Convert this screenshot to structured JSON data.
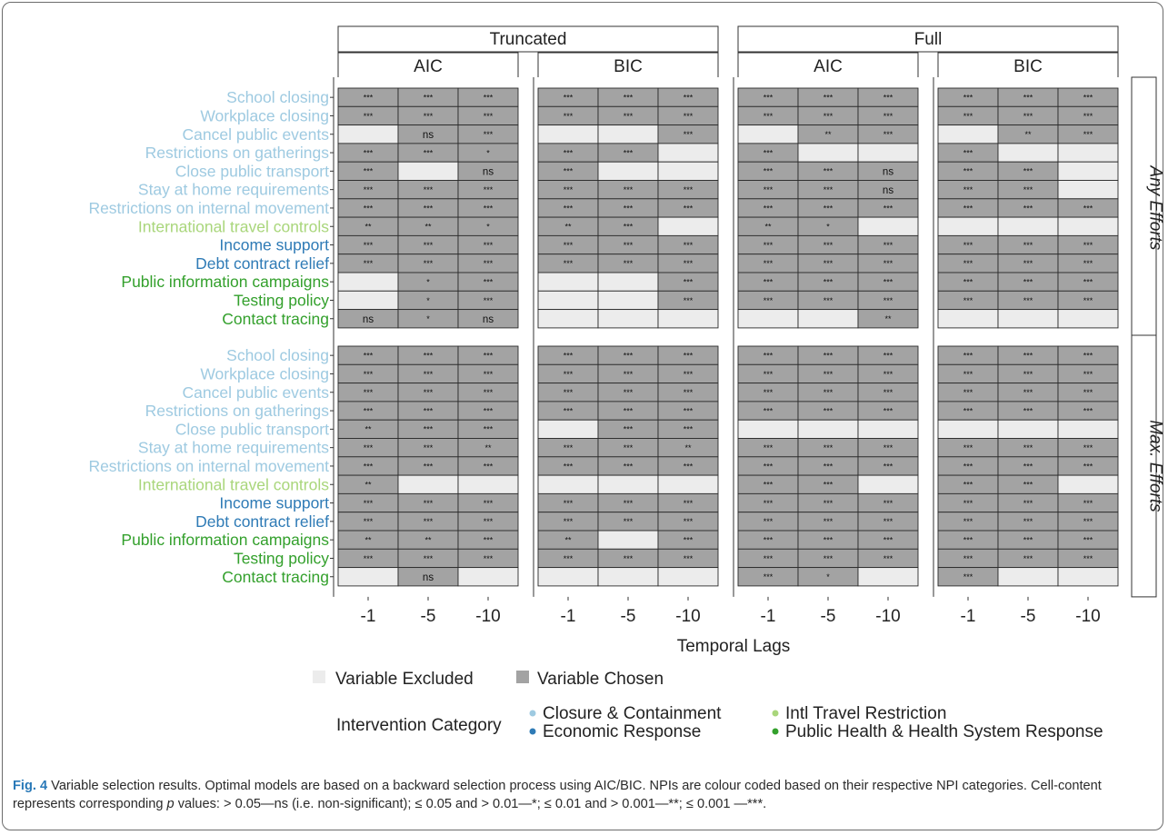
{
  "chart_data": {
    "type": "heatmap",
    "xlabel": "Temporal Lags",
    "x_ticks": [
      "-1",
      "-5",
      "-10"
    ],
    "column_groups": [
      {
        "label": "Truncated",
        "criteria": [
          "AIC",
          "BIC"
        ]
      },
      {
        "label": "Full",
        "criteria": [
          "AIC",
          "BIC"
        ]
      }
    ],
    "row_labels": [
      "School closing",
      "Workplace closing",
      "Cancel public events",
      "Restrictions on gatherings",
      "Close public transport",
      "Stay at home requirements",
      "Restrictions on internal movement",
      "International travel controls",
      "Income support",
      "Debt contract relief",
      "Public information campaigns",
      "Testing policy",
      "Contact tracing"
    ],
    "row_categories": [
      "Closure & Containment",
      "Closure & Containment",
      "Closure & Containment",
      "Closure & Containment",
      "Closure & Containment",
      "Closure & Containment",
      "Closure & Containment",
      "Intl Travel Restriction",
      "Economic Response",
      "Economic Response",
      "Public Health & Health System Response",
      "Public Health & Health System Response",
      "Public Health & Health System Response"
    ],
    "cell_encoding": "null = Variable Excluded; text = p-value significance of chosen variable",
    "panels": [
      {
        "label": "Any Efforts",
        "cells": [
          [
            [
              [
                "***",
                "***",
                "***"
              ],
              [
                "***",
                "***",
                "***"
              ],
              [
                null,
                "ns",
                "***"
              ],
              [
                "***",
                "***",
                "*"
              ],
              [
                "***",
                null,
                "ns"
              ],
              [
                "***",
                "***",
                "***"
              ],
              [
                "***",
                "***",
                "***"
              ],
              [
                "**",
                "**",
                "*"
              ],
              [
                "***",
                "***",
                "***"
              ],
              [
                "***",
                "***",
                "***"
              ],
              [
                null,
                "*",
                "***"
              ],
              [
                null,
                "*",
                "***"
              ],
              [
                "ns",
                "*",
                "ns"
              ]
            ],
            [
              [
                "***",
                "***",
                "***"
              ],
              [
                "***",
                "***",
                "***"
              ],
              [
                null,
                null,
                "***"
              ],
              [
                "***",
                "***",
                null
              ],
              [
                "***",
                null,
                null
              ],
              [
                "***",
                "***",
                "***"
              ],
              [
                "***",
                "***",
                "***"
              ],
              [
                "**",
                "***",
                null
              ],
              [
                "***",
                "***",
                "***"
              ],
              [
                "***",
                "***",
                "***"
              ],
              [
                null,
                null,
                "***"
              ],
              [
                null,
                null,
                "***"
              ],
              [
                null,
                null,
                null
              ]
            ]
          ],
          [
            [
              [
                "***",
                "***",
                "***"
              ],
              [
                "***",
                "***",
                "***"
              ],
              [
                null,
                "**",
                "***"
              ],
              [
                "***",
                null,
                null
              ],
              [
                "***",
                "***",
                "ns"
              ],
              [
                "***",
                "***",
                "ns"
              ],
              [
                "***",
                "***",
                "***"
              ],
              [
                "**",
                "*",
                null
              ],
              [
                "***",
                "***",
                "***"
              ],
              [
                "***",
                "***",
                "***"
              ],
              [
                "***",
                "***",
                "***"
              ],
              [
                "***",
                "***",
                "***"
              ],
              [
                null,
                null,
                "**"
              ]
            ],
            [
              [
                "***",
                "***",
                "***"
              ],
              [
                "***",
                "***",
                "***"
              ],
              [
                null,
                "**",
                "***"
              ],
              [
                "***",
                null,
                null
              ],
              [
                "***",
                "***",
                null
              ],
              [
                "***",
                "***",
                null
              ],
              [
                "***",
                "***",
                "***"
              ],
              [
                null,
                null,
                null
              ],
              [
                "***",
                "***",
                "***"
              ],
              [
                "***",
                "***",
                "***"
              ],
              [
                "***",
                "***",
                "***"
              ],
              [
                "***",
                "***",
                "***"
              ],
              [
                null,
                null,
                null
              ]
            ]
          ]
        ]
      },
      {
        "label": "Max. Efforts",
        "cells": [
          [
            [
              [
                "***",
                "***",
                "***"
              ],
              [
                "***",
                "***",
                "***"
              ],
              [
                "***",
                "***",
                "***"
              ],
              [
                "***",
                "***",
                "***"
              ],
              [
                "**",
                "***",
                "***"
              ],
              [
                "***",
                "***",
                "**"
              ],
              [
                "***",
                "***",
                "***"
              ],
              [
                "**",
                null,
                null
              ],
              [
                "***",
                "***",
                "***"
              ],
              [
                "***",
                "***",
                "***"
              ],
              [
                "**",
                "**",
                "***"
              ],
              [
                "***",
                "***",
                "***"
              ],
              [
                null,
                "ns",
                null
              ]
            ],
            [
              [
                "***",
                "***",
                "***"
              ],
              [
                "***",
                "***",
                "***"
              ],
              [
                "***",
                "***",
                "***"
              ],
              [
                "***",
                "***",
                "***"
              ],
              [
                null,
                "***",
                "***"
              ],
              [
                "***",
                "***",
                "**"
              ],
              [
                "***",
                "***",
                "***"
              ],
              [
                null,
                null,
                null
              ],
              [
                "***",
                "***",
                "***"
              ],
              [
                "***",
                "***",
                "***"
              ],
              [
                "**",
                null,
                "***"
              ],
              [
                "***",
                "***",
                "***"
              ],
              [
                null,
                null,
                null
              ]
            ]
          ],
          [
            [
              [
                "***",
                "***",
                "***"
              ],
              [
                "***",
                "***",
                "***"
              ],
              [
                "***",
                "***",
                "***"
              ],
              [
                "***",
                "***",
                "***"
              ],
              [
                null,
                null,
                null
              ],
              [
                "***",
                "***",
                "***"
              ],
              [
                "***",
                "***",
                "***"
              ],
              [
                "***",
                "***",
                null
              ],
              [
                "***",
                "***",
                "***"
              ],
              [
                "***",
                "***",
                "***"
              ],
              [
                "***",
                "***",
                "***"
              ],
              [
                "***",
                "***",
                "***"
              ],
              [
                "***",
                "*",
                null
              ]
            ],
            [
              [
                "***",
                "***",
                "***"
              ],
              [
                "***",
                "***",
                "***"
              ],
              [
                "***",
                "***",
                "***"
              ],
              [
                "***",
                "***",
                "***"
              ],
              [
                null,
                null,
                null
              ],
              [
                "***",
                "***",
                "***"
              ],
              [
                "***",
                "***",
                "***"
              ],
              [
                "***",
                "***",
                null
              ],
              [
                "***",
                "***",
                "***"
              ],
              [
                "***",
                "***",
                "***"
              ],
              [
                "***",
                "***",
                "***"
              ],
              [
                "***",
                "***",
                "***"
              ],
              [
                "***",
                null,
                null
              ]
            ]
          ]
        ]
      }
    ],
    "fill_legend": [
      {
        "label": "Variable Excluded",
        "color": "#ececec"
      },
      {
        "label": "Variable Chosen",
        "color": "#a3a3a3"
      }
    ],
    "category_legend": {
      "title": "Intervention Category",
      "items": [
        {
          "label": "Closure & Containment",
          "color": "#9ecae1"
        },
        {
          "label": "Intl Travel Restriction",
          "color": "#a9d67b"
        },
        {
          "label": "Economic Response",
          "color": "#2f7bb6"
        },
        {
          "label": "Public Health & Health System Response",
          "color": "#33a02c"
        }
      ]
    }
  },
  "caption": {
    "fig_label": "Fig. 4",
    "text_1": " Variable selection results. Optimal models are based on a backward selection process using AIC/BIC. NPIs are colour coded based on their respective NPI categories. Cell-content represents corresponding ",
    "p_symbol": "p",
    "text_2": " values: > 0.05—ns (i.e. non-significant); ≤ 0.05 and > 0.01—*; ≤ 0.01 and > 0.001—**; ≤ 0.001 —***."
  }
}
